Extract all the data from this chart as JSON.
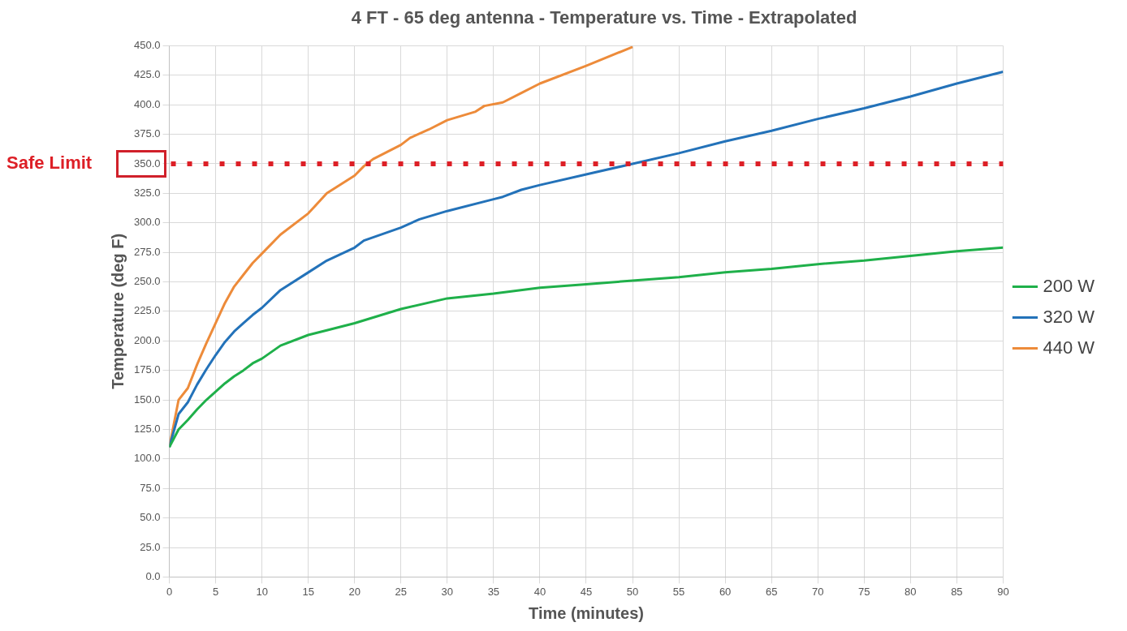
{
  "chart_data": {
    "type": "line",
    "title": "4 FT - 65 deg antenna - Temperature vs. Time - Extrapolated",
    "xlabel": "Time (minutes)",
    "ylabel": "Temperature (deg F)",
    "xlim": [
      0,
      90
    ],
    "xticks": [
      0,
      5,
      10,
      15,
      20,
      25,
      30,
      35,
      40,
      45,
      50,
      55,
      60,
      65,
      70,
      75,
      80,
      85,
      90
    ],
    "ylim": [
      0,
      450
    ],
    "yticks": [
      {
        "value": 0,
        "label": "0.0"
      },
      {
        "value": 25,
        "label": "25.0"
      },
      {
        "value": 50,
        "label": "50.0"
      },
      {
        "value": 75,
        "label": "75.0"
      },
      {
        "value": 100,
        "label": "100.0"
      },
      {
        "value": 125,
        "label": "125.0"
      },
      {
        "value": 150,
        "label": "150.0"
      },
      {
        "value": 175,
        "label": "175.0"
      },
      {
        "value": 200,
        "label": "200.0"
      },
      {
        "value": 225,
        "label": "225.0"
      },
      {
        "value": 250,
        "label": "250.0"
      },
      {
        "value": 275,
        "label": "275.0"
      },
      {
        "value": 300,
        "label": "300.0"
      },
      {
        "value": 325,
        "label": "325.0"
      },
      {
        "value": 350,
        "label": "350.0"
      },
      {
        "value": 375,
        "label": "375.0"
      },
      {
        "value": 400,
        "label": "400.0"
      },
      {
        "value": 425,
        "label": "425.0"
      },
      {
        "value": 450,
        "label": "450.0"
      }
    ],
    "grid": true,
    "legend": "right",
    "marker": "none",
    "line_style": "solid",
    "ref_lines": [
      {
        "axis": "y",
        "value": 350,
        "label": "Safe Limit",
        "color": "#dd1f26",
        "line_style": "dotted"
      }
    ],
    "series": [
      {
        "name": "200 W",
        "color": "#1fb04a",
        "x": [
          0,
          1,
          2,
          3,
          4,
          5,
          6,
          7,
          8,
          9,
          10,
          12,
          15,
          17,
          20,
          25,
          30,
          35,
          40,
          45,
          50,
          55,
          60,
          65,
          70,
          75,
          80,
          85,
          90
        ],
        "values": [
          110,
          125,
          133,
          142,
          150,
          157,
          164,
          170,
          175,
          181,
          185,
          196,
          205,
          209,
          215,
          227,
          236,
          240,
          245,
          248,
          251,
          254,
          258,
          261,
          265,
          268,
          272,
          276,
          279
        ]
      },
      {
        "name": "320 W",
        "color": "#2372b9",
        "x": [
          0,
          1,
          2,
          3,
          4,
          5,
          6,
          7,
          8,
          9,
          10,
          12,
          15,
          17,
          20,
          21,
          25,
          27,
          30,
          35,
          36,
          38,
          40,
          45,
          50,
          55,
          60,
          65,
          70,
          75,
          80,
          85,
          90
        ],
        "values": [
          110,
          138,
          148,
          163,
          176,
          188,
          199,
          208,
          215,
          222,
          228,
          243,
          258,
          268,
          279,
          285,
          296,
          303,
          310,
          320,
          322,
          328,
          332,
          341,
          350,
          359,
          369,
          378,
          388,
          397,
          407,
          418,
          428
        ]
      },
      {
        "name": "440 W",
        "color": "#ed8b3a",
        "x": [
          0,
          1,
          2,
          3,
          4,
          5,
          6,
          7,
          8,
          9,
          10,
          12,
          15,
          17,
          20,
          21,
          22,
          25,
          26,
          28,
          30,
          33,
          34,
          36,
          38,
          40,
          45,
          50
        ],
        "values": [
          110,
          150,
          160,
          180,
          198,
          215,
          232,
          246,
          256,
          266,
          274,
          290,
          308,
          325,
          340,
          348,
          354,
          366,
          372,
          379,
          387,
          394,
          399,
          402,
          410,
          418,
          433,
          449
        ]
      }
    ]
  }
}
